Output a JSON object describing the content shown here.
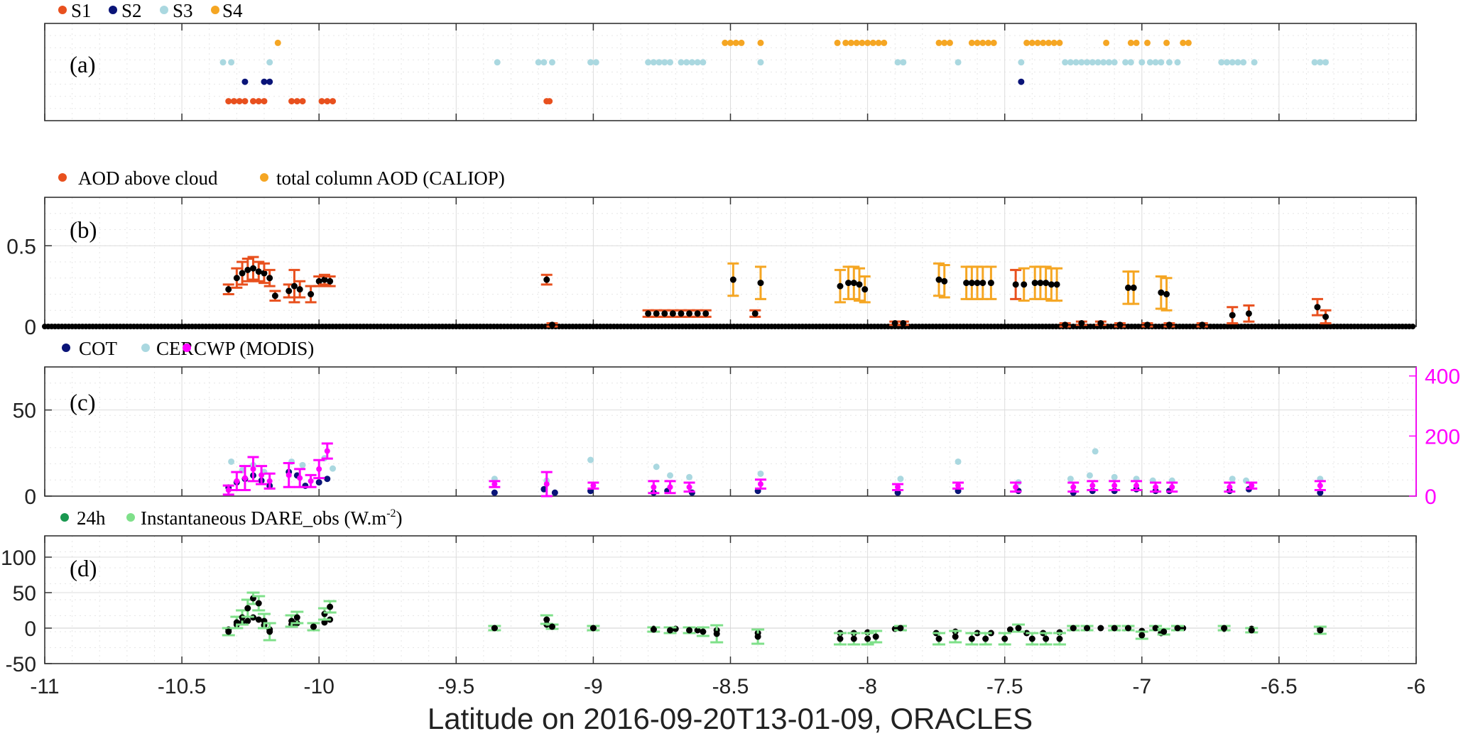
{
  "figure": {
    "xlabel": "Latitude on 2016-09-20T13-01-09, ORACLES",
    "xlim": [
      -11,
      -6
    ],
    "xticks": [
      -11,
      -10.5,
      -10,
      -9.5,
      -9,
      -8.5,
      -8,
      -7.5,
      -7,
      -6.5,
      -6
    ],
    "xtick_labels": [
      "-11",
      "-10.5",
      "-10",
      "-9.5",
      "-9",
      "-8.5",
      "-8",
      "-7.5",
      "-7",
      "-6.5",
      "-6"
    ]
  },
  "chart_data": [
    {
      "type": "scatter",
      "panel_label": "(a)",
      "legend": [
        {
          "label": "S1",
          "color": "#e8501e"
        },
        {
          "label": "S2",
          "color": "#0a1478"
        },
        {
          "label": "S3",
          "color": "#aad8e0"
        },
        {
          "label": "S4",
          "color": "#f5a623"
        }
      ],
      "xlim": [
        -11,
        -6
      ],
      "ylim": [
        0,
        5
      ],
      "series": [
        {
          "name": "S1",
          "level": 1,
          "color": "#e8501e",
          "x": [
            -10.33,
            -10.31,
            -10.29,
            -10.27,
            -10.24,
            -10.22,
            -10.2,
            -10.1,
            -10.08,
            -10.06,
            -9.99,
            -9.97,
            -9.95,
            -9.17,
            -9.16
          ]
        },
        {
          "name": "S2",
          "level": 2,
          "color": "#0a1478",
          "x": [
            -10.27,
            -10.2,
            -10.18,
            -7.44
          ]
        },
        {
          "name": "S3",
          "level": 3,
          "color": "#aad8e0",
          "x": [
            -10.35,
            -10.32,
            -10.18,
            -9.35,
            -9.2,
            -9.18,
            -9.15,
            -9.01,
            -8.99,
            -8.8,
            -8.78,
            -8.76,
            -8.74,
            -8.72,
            -8.68,
            -8.66,
            -8.64,
            -8.62,
            -8.6,
            -8.39,
            -7.89,
            -7.87,
            -7.67,
            -7.44,
            -7.28,
            -7.26,
            -7.24,
            -7.22,
            -7.2,
            -7.18,
            -7.16,
            -7.14,
            -7.12,
            -7.1,
            -7.06,
            -7.04,
            -7.0,
            -6.97,
            -6.95,
            -6.93,
            -6.9,
            -6.87,
            -6.71,
            -6.69,
            -6.67,
            -6.65,
            -6.63,
            -6.59,
            -6.37,
            -6.35,
            -6.33
          ]
        },
        {
          "name": "S4",
          "level": 4,
          "color": "#f5a623",
          "x": [
            -10.15,
            -8.52,
            -8.5,
            -8.48,
            -8.46,
            -8.39,
            -8.11,
            -8.08,
            -8.06,
            -8.04,
            -8.02,
            -8.0,
            -7.98,
            -7.96,
            -7.94,
            -7.74,
            -7.72,
            -7.7,
            -7.62,
            -7.6,
            -7.58,
            -7.56,
            -7.54,
            -7.42,
            -7.4,
            -7.38,
            -7.36,
            -7.34,
            -7.32,
            -7.3,
            -7.13,
            -7.04,
            -7.02,
            -6.98,
            -6.91,
            -6.85,
            -6.83
          ]
        }
      ]
    },
    {
      "type": "scatter",
      "panel_label": "(b)",
      "legend": [
        {
          "label": "AOD above cloud",
          "color": "#e8501e"
        },
        {
          "label": "total column AOD (CALIOP)",
          "color": "#f5a623"
        }
      ],
      "xlim": [
        -11,
        -6
      ],
      "ylim": [
        0,
        0.8
      ],
      "yticks": [
        0,
        0.5
      ],
      "ytick_labels": [
        "0",
        "0.5"
      ],
      "series": [
        {
          "name": "AOD above cloud",
          "color": "#e8501e",
          "x": [
            -10.33,
            -10.3,
            -10.28,
            -10.26,
            -10.24,
            -10.22,
            -10.2,
            -10.18,
            -10.16,
            -10.11,
            -10.09,
            -10.07,
            -10.03,
            -10.0,
            -9.98,
            -9.96,
            -9.17,
            -9.15,
            -8.8,
            -8.77,
            -8.74,
            -8.71,
            -8.68,
            -8.65,
            -8.62,
            -8.59,
            -8.41,
            -7.9,
            -7.87,
            -7.46,
            -7.28,
            -7.22,
            -7.15,
            -7.08,
            -6.98,
            -6.9,
            -6.78,
            -6.67,
            -6.61,
            -6.36,
            -6.33
          ],
          "y": [
            0.23,
            0.3,
            0.33,
            0.35,
            0.36,
            0.34,
            0.33,
            0.3,
            0.19,
            0.22,
            0.25,
            0.23,
            0.2,
            0.28,
            0.29,
            0.28,
            0.29,
            0.01,
            0.08,
            0.08,
            0.08,
            0.08,
            0.08,
            0.08,
            0.08,
            0.08,
            0.08,
            0.02,
            0.02,
            0.26,
            0.01,
            0.02,
            0.02,
            0.01,
            0.01,
            0.01,
            0.01,
            0.07,
            0.08,
            0.12,
            0.06
          ],
          "err": [
            0.03,
            0.06,
            0.07,
            0.07,
            0.07,
            0.06,
            0.06,
            0.05,
            0.03,
            0.04,
            0.1,
            0.05,
            0.05,
            0.03,
            0.03,
            0.03,
            0.03,
            0.01,
            0.02,
            0.02,
            0.02,
            0.02,
            0.02,
            0.02,
            0.02,
            0.02,
            0.02,
            0.01,
            0.01,
            0.09,
            0.01,
            0.01,
            0.01,
            0.01,
            0.01,
            0.01,
            0.01,
            0.05,
            0.05,
            0.05,
            0.04
          ]
        },
        {
          "name": "total column AOD (CALIOP)",
          "color": "#f5a623",
          "x": [
            -8.49,
            -8.39,
            -8.1,
            -8.07,
            -8.05,
            -8.03,
            -8.01,
            -7.74,
            -7.72,
            -7.64,
            -7.62,
            -7.6,
            -7.58,
            -7.55,
            -7.43,
            -7.39,
            -7.37,
            -7.35,
            -7.33,
            -7.31,
            -7.05,
            -7.03,
            -6.93,
            -6.91
          ],
          "y": [
            0.29,
            0.27,
            0.25,
            0.27,
            0.27,
            0.26,
            0.23,
            0.29,
            0.28,
            0.27,
            0.27,
            0.27,
            0.27,
            0.27,
            0.26,
            0.27,
            0.27,
            0.27,
            0.26,
            0.26,
            0.24,
            0.24,
            0.21,
            0.2
          ],
          "err": [
            0.1,
            0.1,
            0.1,
            0.1,
            0.1,
            0.1,
            0.08,
            0.1,
            0.1,
            0.1,
            0.1,
            0.1,
            0.1,
            0.1,
            0.1,
            0.1,
            0.1,
            0.1,
            0.1,
            0.1,
            0.1,
            0.1,
            0.1,
            0.1
          ]
        }
      ]
    },
    {
      "type": "scatter",
      "panel_label": "(c)",
      "legend": [
        {
          "label": "COT",
          "color": "#0a1478"
        },
        {
          "label": "CER",
          "color": "#aad8e0"
        },
        {
          "label": "CWP (MODIS)",
          "color": "#ff00ff"
        }
      ],
      "xlim": [
        -11,
        -6
      ],
      "ylim": [
        0,
        75
      ],
      "yticks": [
        0,
        50
      ],
      "ytick_labels": [
        "0",
        "50"
      ],
      "ylim_right": [
        0,
        430
      ],
      "yticks_right": [
        0,
        200,
        400
      ],
      "ytick_labels_right": [
        "0",
        "200",
        "400"
      ],
      "series": [
        {
          "name": "COT",
          "color": "#0a1478",
          "x": [
            -10.33,
            -10.3,
            -10.27,
            -10.24,
            -10.21,
            -10.18,
            -10.11,
            -10.08,
            -10.05,
            -10.0,
            -9.97,
            -9.36,
            -9.18,
            -9.14,
            -9.01,
            -8.78,
            -8.73,
            -8.64,
            -8.4,
            -7.89,
            -7.67,
            -7.45,
            -7.25,
            -7.18,
            -7.1,
            -7.02,
            -6.95,
            -6.9,
            -6.68,
            -6.61,
            -6.35
          ],
          "y": [
            5,
            8,
            10,
            12,
            9,
            6,
            14,
            12,
            6,
            8,
            10,
            2,
            4,
            2,
            3,
            2,
            3,
            2,
            3,
            2,
            3,
            3,
            2,
            3,
            3,
            4,
            3,
            3,
            3,
            4,
            2
          ]
        },
        {
          "name": "CER",
          "color": "#aad8e0",
          "x": [
            -10.32,
            -10.28,
            -10.24,
            -10.2,
            -10.1,
            -10.06,
            -9.98,
            -9.95,
            -9.36,
            -9.17,
            -9.01,
            -8.77,
            -8.72,
            -8.65,
            -8.39,
            -7.88,
            -7.67,
            -7.45,
            -7.26,
            -7.19,
            -7.17,
            -7.1,
            -7.02,
            -6.96,
            -6.89,
            -6.67,
            -6.62,
            -6.35
          ],
          "y": [
            20,
            15,
            18,
            14,
            20,
            18,
            22,
            16,
            10,
            9,
            21,
            17,
            12,
            11,
            13,
            10,
            20,
            8,
            10,
            12,
            26,
            11,
            10,
            9,
            9,
            10,
            9,
            10
          ]
        },
        {
          "name": "CWP (MODIS)",
          "color": "#ff00ff",
          "x": [
            -10.33,
            -10.3,
            -10.27,
            -10.24,
            -10.21,
            -10.18,
            -10.11,
            -10.07,
            -10.03,
            -10.0,
            -9.97,
            -9.36,
            -9.17,
            -9.0,
            -8.78,
            -8.72,
            -8.65,
            -8.39,
            -7.89,
            -7.67,
            -7.46,
            -7.25,
            -7.18,
            -7.1,
            -7.02,
            -6.95,
            -6.89,
            -6.68,
            -6.6,
            -6.35
          ],
          "y": [
            20,
            50,
            60,
            90,
            70,
            50,
            70,
            60,
            50,
            90,
            150,
            40,
            40,
            35,
            30,
            30,
            30,
            40,
            30,
            35,
            30,
            30,
            35,
            35,
            35,
            30,
            30,
            30,
            35,
            35
          ],
          "err": [
            15,
            30,
            40,
            40,
            30,
            25,
            40,
            30,
            20,
            30,
            25,
            10,
            40,
            10,
            20,
            20,
            15,
            15,
            10,
            10,
            15,
            15,
            15,
            15,
            15,
            15,
            15,
            15,
            10,
            15
          ]
        }
      ]
    },
    {
      "type": "scatter",
      "panel_label": "(d)",
      "legend": [
        {
          "label": "24h",
          "color": "#1a9850"
        },
        {
          "label": "Instantaneous DARE_obs (W.m",
          "color": "#7fe08a"
        }
      ],
      "legend_superscript": "-2",
      "legend_suffix": ")",
      "xlim": [
        -11,
        -6
      ],
      "ylim": [
        -50,
        130
      ],
      "yticks": [
        -50,
        0,
        50,
        100
      ],
      "ytick_labels": [
        "-50",
        "0",
        "50",
        "100"
      ],
      "series": [
        {
          "name": "24h",
          "color": "#1a9850",
          "x": [
            -10.33,
            -10.3,
            -10.28,
            -10.26,
            -10.24,
            -10.22,
            -10.2,
            -10.18,
            -10.1,
            -10.08,
            -10.02,
            -9.98,
            -9.96,
            -9.36,
            -9.17,
            -9.0,
            -8.78,
            -8.7,
            -8.62,
            -8.55,
            -8.4,
            -8.1,
            -8.05,
            -8.0,
            -7.9,
            -7.75,
            -7.68,
            -7.6,
            -7.55,
            -7.48,
            -7.42,
            -7.36,
            -7.3,
            -7.25,
            -7.15,
            -7.05,
            -7.0,
            -6.93,
            -6.85,
            -6.7,
            -6.6,
            -6.35
          ],
          "y": [
            -2,
            5,
            8,
            10,
            15,
            12,
            4,
            -2,
            5,
            7,
            2,
            8,
            12,
            0,
            5,
            0,
            -1,
            -1,
            -3,
            -3,
            -7,
            -7,
            -7,
            -6,
            -1,
            -7,
            -5,
            -7,
            -7,
            -2,
            -7,
            -7,
            -6,
            0,
            0,
            0,
            -4,
            -7,
            0,
            -1,
            -1,
            -1
          ]
        },
        {
          "name": "Instantaneous DARE_obs (W.m",
          "color": "#7fe08a",
          "x": [
            -10.33,
            -10.3,
            -10.28,
            -10.26,
            -10.24,
            -10.22,
            -10.2,
            -10.18,
            -10.1,
            -10.08,
            -10.02,
            -9.98,
            -9.96,
            -9.36,
            -9.17,
            -9.15,
            -9.0,
            -8.78,
            -8.72,
            -8.65,
            -8.6,
            -8.55,
            -8.4,
            -8.1,
            -8.05,
            -8.0,
            -7.97,
            -7.88,
            -7.74,
            -7.68,
            -7.62,
            -7.57,
            -7.5,
            -7.45,
            -7.4,
            -7.35,
            -7.3,
            -7.25,
            -7.2,
            -7.1,
            -7.05,
            -7.0,
            -6.95,
            -6.92,
            -6.87,
            -6.7,
            -6.6,
            -6.35
          ],
          "y": [
            -5,
            8,
            15,
            28,
            42,
            35,
            10,
            -5,
            10,
            15,
            2,
            20,
            30,
            0,
            12,
            2,
            0,
            -2,
            -3,
            -3,
            -5,
            -8,
            -12,
            -15,
            -15,
            -15,
            -12,
            0,
            -15,
            -12,
            -15,
            -15,
            -15,
            0,
            -15,
            -15,
            -15,
            0,
            0,
            0,
            0,
            -10,
            0,
            -5,
            0,
            0,
            -3,
            -3
          ],
          "err": [
            5,
            8,
            10,
            12,
            8,
            10,
            10,
            12,
            8,
            8,
            5,
            8,
            8,
            3,
            6,
            3,
            3,
            3,
            4,
            4,
            6,
            12,
            10,
            8,
            8,
            8,
            8,
            3,
            8,
            8,
            8,
            8,
            8,
            5,
            8,
            8,
            8,
            3,
            3,
            3,
            3,
            5,
            3,
            4,
            3,
            3,
            3,
            5
          ]
        }
      ]
    }
  ]
}
